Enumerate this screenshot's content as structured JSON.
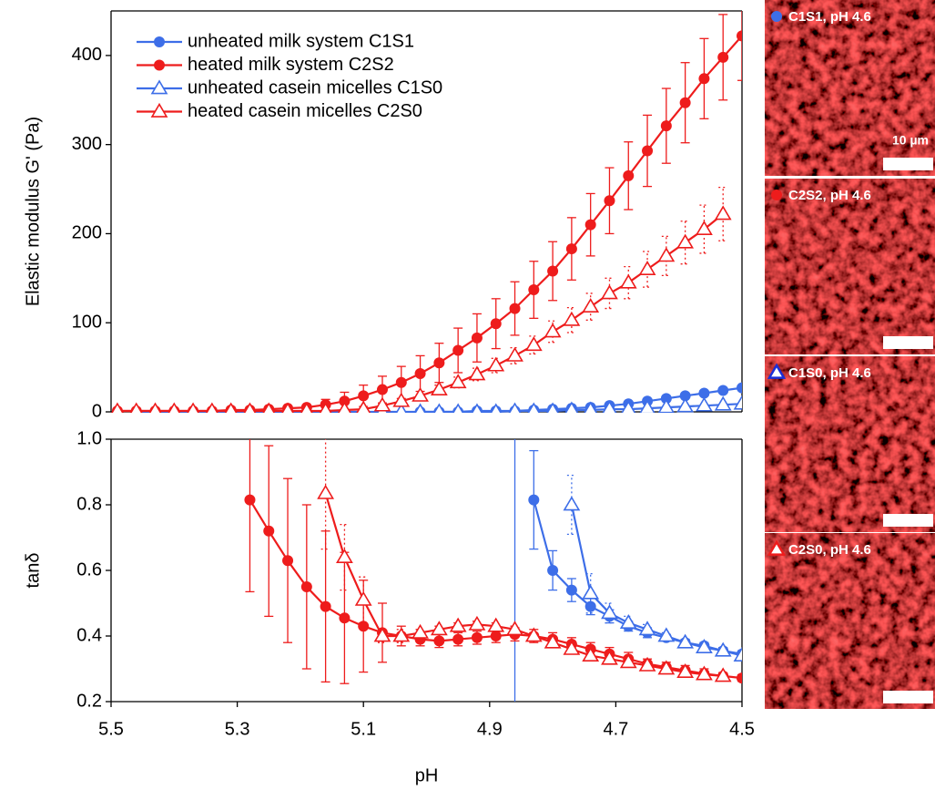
{
  "chart_data": [
    {
      "type": "line",
      "ylabel": "Elastic modulus G' (Pa)",
      "xlim": [
        5.5,
        4.5
      ],
      "ylim": [
        0,
        450
      ],
      "yticks": [
        0,
        100,
        200,
        300,
        400
      ],
      "x": [
        5.49,
        5.46,
        5.43,
        5.4,
        5.37,
        5.34,
        5.31,
        5.28,
        5.25,
        5.22,
        5.19,
        5.16,
        5.13,
        5.1,
        5.07,
        5.04,
        5.01,
        4.98,
        4.95,
        4.92,
        4.89,
        4.86,
        4.83,
        4.8,
        4.77,
        4.74,
        4.71,
        4.68,
        4.65,
        4.62,
        4.59,
        4.56,
        4.53,
        4.5
      ],
      "legend": "upper left",
      "series": [
        {
          "name": "unheated milk system C1S1",
          "color": "#3d6ee8",
          "marker": "circle",
          "values": [
            null,
            null,
            null,
            null,
            null,
            null,
            null,
            null,
            null,
            null,
            null,
            null,
            null,
            null,
            null,
            null,
            0,
            0,
            0,
            1,
            1,
            1,
            2,
            3,
            4,
            5,
            7,
            9,
            12,
            15,
            18,
            21,
            24,
            27
          ]
        },
        {
          "name": "heated milk system C2S2",
          "color": "#ee1c1c",
          "marker": "circle",
          "error_style": "solid",
          "values": [
            1,
            1,
            1,
            1,
            1,
            1,
            2,
            2,
            3,
            4,
            5,
            8,
            12,
            18,
            25,
            33,
            43,
            55,
            69,
            83,
            99,
            116,
            137,
            158,
            183,
            210,
            237,
            265,
            293,
            321,
            347,
            374,
            398,
            422
          ],
          "errors": [
            null,
            null,
            null,
            null,
            null,
            null,
            null,
            null,
            null,
            null,
            null,
            6,
            10,
            12,
            15,
            18,
            20,
            22,
            25,
            27,
            28,
            30,
            32,
            33,
            35,
            35,
            37,
            38,
            40,
            42,
            45,
            45,
            48,
            50
          ]
        },
        {
          "name": "unheated casein micelles C1S0",
          "color": "#3d6ee8",
          "marker": "triangle",
          "values": [
            null,
            0,
            0,
            0,
            0,
            0,
            0,
            0,
            0,
            0,
            0,
            0,
            0,
            0,
            0,
            0,
            0,
            0,
            0,
            0,
            0,
            1,
            1,
            1,
            2,
            2,
            3,
            3,
            4,
            5,
            6,
            7,
            8,
            9
          ]
        },
        {
          "name": "heated casein micelles C2S0",
          "color": "#ee1c1c",
          "marker": "triangle",
          "error_style": "dotted",
          "values": [
            1,
            1,
            1,
            1,
            1,
            1,
            1,
            1,
            1,
            1,
            1,
            1,
            2,
            3,
            7,
            12,
            18,
            25,
            33,
            42,
            52,
            63,
            75,
            90,
            103,
            118,
            133,
            145,
            160,
            175,
            190,
            205,
            222,
            null
          ],
          "errors": [
            null,
            null,
            null,
            null,
            null,
            null,
            null,
            null,
            null,
            null,
            null,
            null,
            null,
            null,
            null,
            null,
            null,
            5,
            6,
            7,
            8,
            9,
            10,
            12,
            14,
            15,
            17,
            18,
            20,
            22,
            24,
            27,
            30,
            null
          ]
        }
      ]
    },
    {
      "type": "line",
      "ylabel": "tanδ",
      "xlabel": "pH",
      "xlim": [
        5.5,
        4.5
      ],
      "xticks": [
        5.5,
        5.3,
        5.1,
        4.9,
        4.7,
        4.5
      ],
      "ylim": [
        0.2,
        1.0
      ],
      "yticks": [
        0.2,
        0.4,
        0.6,
        0.8,
        {
          "value": 1,
          "label": "1.0"
        }
      ],
      "vline": 4.86,
      "vline_color": "#3d6ee8",
      "x": [
        5.49,
        5.46,
        5.43,
        5.4,
        5.37,
        5.34,
        5.31,
        5.28,
        5.25,
        5.22,
        5.19,
        5.16,
        5.13,
        5.1,
        5.07,
        5.04,
        5.01,
        4.98,
        4.95,
        4.92,
        4.89,
        4.86,
        4.83,
        4.8,
        4.77,
        4.74,
        4.71,
        4.68,
        4.65,
        4.62,
        4.59,
        4.56,
        4.53,
        4.5
      ],
      "series": [
        {
          "color": "#3d6ee8",
          "marker": "circle",
          "error_style": "solid",
          "values": [
            null,
            null,
            null,
            null,
            null,
            null,
            null,
            null,
            null,
            null,
            null,
            null,
            null,
            null,
            null,
            null,
            null,
            null,
            null,
            null,
            null,
            null,
            0.815,
            0.6,
            0.54,
            0.49,
            0.46,
            0.43,
            0.41,
            0.395,
            0.38,
            0.37,
            0.355,
            0.345
          ],
          "errors": [
            null,
            null,
            null,
            null,
            null,
            null,
            null,
            null,
            null,
            null,
            null,
            null,
            null,
            null,
            null,
            null,
            null,
            null,
            null,
            null,
            null,
            null,
            0.15,
            0.06,
            0.035,
            0.025,
            0.02,
            0.015,
            0.015,
            0.01,
            0.01,
            0.01,
            0.01,
            0.01
          ]
        },
        {
          "color": "#ee1c1c",
          "marker": "circle",
          "error_style": "solid",
          "values": [
            null,
            null,
            null,
            null,
            null,
            null,
            null,
            0.815,
            0.72,
            0.63,
            0.55,
            0.49,
            0.455,
            0.43,
            0.41,
            0.4,
            0.39,
            0.385,
            0.39,
            0.395,
            0.4,
            0.405,
            0.4,
            0.39,
            0.375,
            0.36,
            0.345,
            0.33,
            0.315,
            0.305,
            0.295,
            0.285,
            0.278,
            0.272
          ],
          "errors": [
            null,
            null,
            null,
            null,
            null,
            null,
            null,
            0.28,
            0.26,
            0.25,
            0.25,
            0.23,
            0.2,
            0.14,
            0.09,
            0.03,
            0.02,
            0.02,
            0.02,
            0.02,
            0.02,
            0.02,
            0.02,
            0.02,
            0.02,
            0.02,
            0.02,
            0.02,
            0.015,
            0.015,
            0.015,
            0.015,
            0.01,
            0.01
          ]
        },
        {
          "color": "#3d6ee8",
          "marker": "triangle",
          "error_style": "dotted",
          "values": [
            null,
            null,
            null,
            null,
            null,
            null,
            null,
            null,
            null,
            null,
            null,
            null,
            null,
            null,
            null,
            null,
            null,
            null,
            null,
            null,
            null,
            null,
            null,
            null,
            0.8,
            0.53,
            0.47,
            0.44,
            0.42,
            0.4,
            0.38,
            0.365,
            0.355,
            0.34
          ],
          "errors": [
            null,
            null,
            null,
            null,
            null,
            null,
            null,
            null,
            null,
            null,
            null,
            null,
            null,
            null,
            null,
            null,
            null,
            null,
            null,
            null,
            null,
            null,
            null,
            null,
            0.09,
            0.06,
            0.03,
            0.02,
            0.015,
            0.01,
            0.01,
            0.01,
            0.01,
            0.01
          ]
        },
        {
          "color": "#ee1c1c",
          "marker": "triangle",
          "error_style": "dotted",
          "values": [
            null,
            null,
            null,
            null,
            null,
            null,
            null,
            null,
            null,
            null,
            null,
            0.835,
            0.64,
            0.51,
            0.4,
            0.4,
            0.41,
            0.42,
            0.43,
            0.435,
            0.43,
            0.42,
            0.4,
            0.38,
            0.36,
            0.34,
            0.33,
            0.32,
            0.31,
            0.3,
            0.29,
            0.283,
            0.278,
            null
          ],
          "errors": [
            null,
            null,
            null,
            null,
            null,
            null,
            null,
            null,
            null,
            null,
            null,
            0.17,
            0.1,
            0.07,
            0.02,
            0.02,
            0.01,
            0.01,
            0.01,
            0.01,
            0.01,
            0.01,
            0.01,
            0.01,
            0.01,
            0.01,
            0.01,
            0.01,
            0.01,
            0.01,
            0.01,
            0.01,
            0.01,
            null
          ]
        }
      ]
    }
  ],
  "micrographs": {
    "scale_label": "10 µm",
    "panels": [
      {
        "label": "C1S1, pH 4.6",
        "marker": "circle",
        "color": "#3d6ee8"
      },
      {
        "label": "C2S2, pH 4.6",
        "marker": "circle",
        "color": "#ee1c1c"
      },
      {
        "label": "C1S0, pH 4.6",
        "marker": "triangle",
        "color": "#1a2fd6"
      },
      {
        "label": "C2S0, pH 4.6",
        "marker": "triangle",
        "color": "#ee1c1c"
      }
    ]
  }
}
